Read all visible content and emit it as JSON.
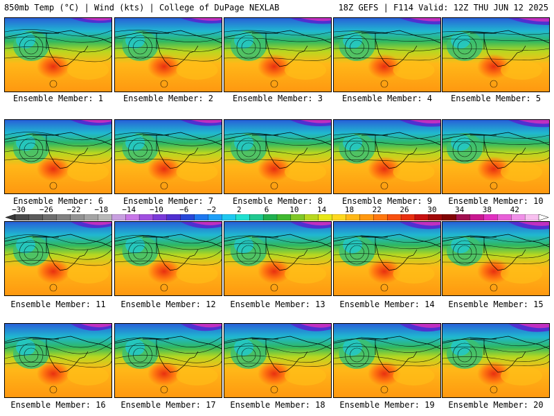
{
  "header": {
    "left": "850mb Temp (°C) | Wind (kts) | College of DuPage NEXLAB",
    "right": "18Z GEFS | F114 Valid: 12Z THU JUN 12 2025"
  },
  "members": [
    "Ensemble Member: 1",
    "Ensemble Member: 2",
    "Ensemble Member: 3",
    "Ensemble Member: 4",
    "Ensemble Member: 5",
    "Ensemble Member: 6",
    "Ensemble Member: 7",
    "Ensemble Member: 8",
    "Ensemble Member: 9",
    "Ensemble Member: 10",
    "Ensemble Member: 11",
    "Ensemble Member: 12",
    "Ensemble Member: 13",
    "Ensemble Member: 14",
    "Ensemble Member: 15",
    "Ensemble Member: 16",
    "Ensemble Member: 17",
    "Ensemble Member: 18",
    "Ensemble Member: 19",
    "Ensemble Member: 20"
  ],
  "colorbar": {
    "tick_labels": [
      "−30",
      "−26",
      "−22",
      "−18",
      "−14",
      "−10",
      "−6",
      "−2",
      "2",
      "6",
      "10",
      "14",
      "18",
      "22",
      "26",
      "30",
      "34",
      "38",
      "42"
    ],
    "bins": [
      "#4a4a4a",
      "#5c5c5c",
      "#6e6e6e",
      "#808080",
      "#929292",
      "#a4a4a4",
      "#b8b8b8",
      "#c8a0e0",
      "#c878e8",
      "#a050e0",
      "#7a3ad8",
      "#5030d0",
      "#2848d8",
      "#1e78f0",
      "#1ea0f8",
      "#20c8f0",
      "#20e0d0",
      "#20c890",
      "#20b050",
      "#40b830",
      "#80c828",
      "#b8d820",
      "#e8e818",
      "#ffd820",
      "#ffb818",
      "#ff9810",
      "#ff7810",
      "#f85010",
      "#e83010",
      "#c81010",
      "#a00808",
      "#800404",
      "#a01050",
      "#c81890",
      "#e030c0",
      "#e860d8",
      "#f090e8",
      "#f8c0f0"
    ]
  }
}
